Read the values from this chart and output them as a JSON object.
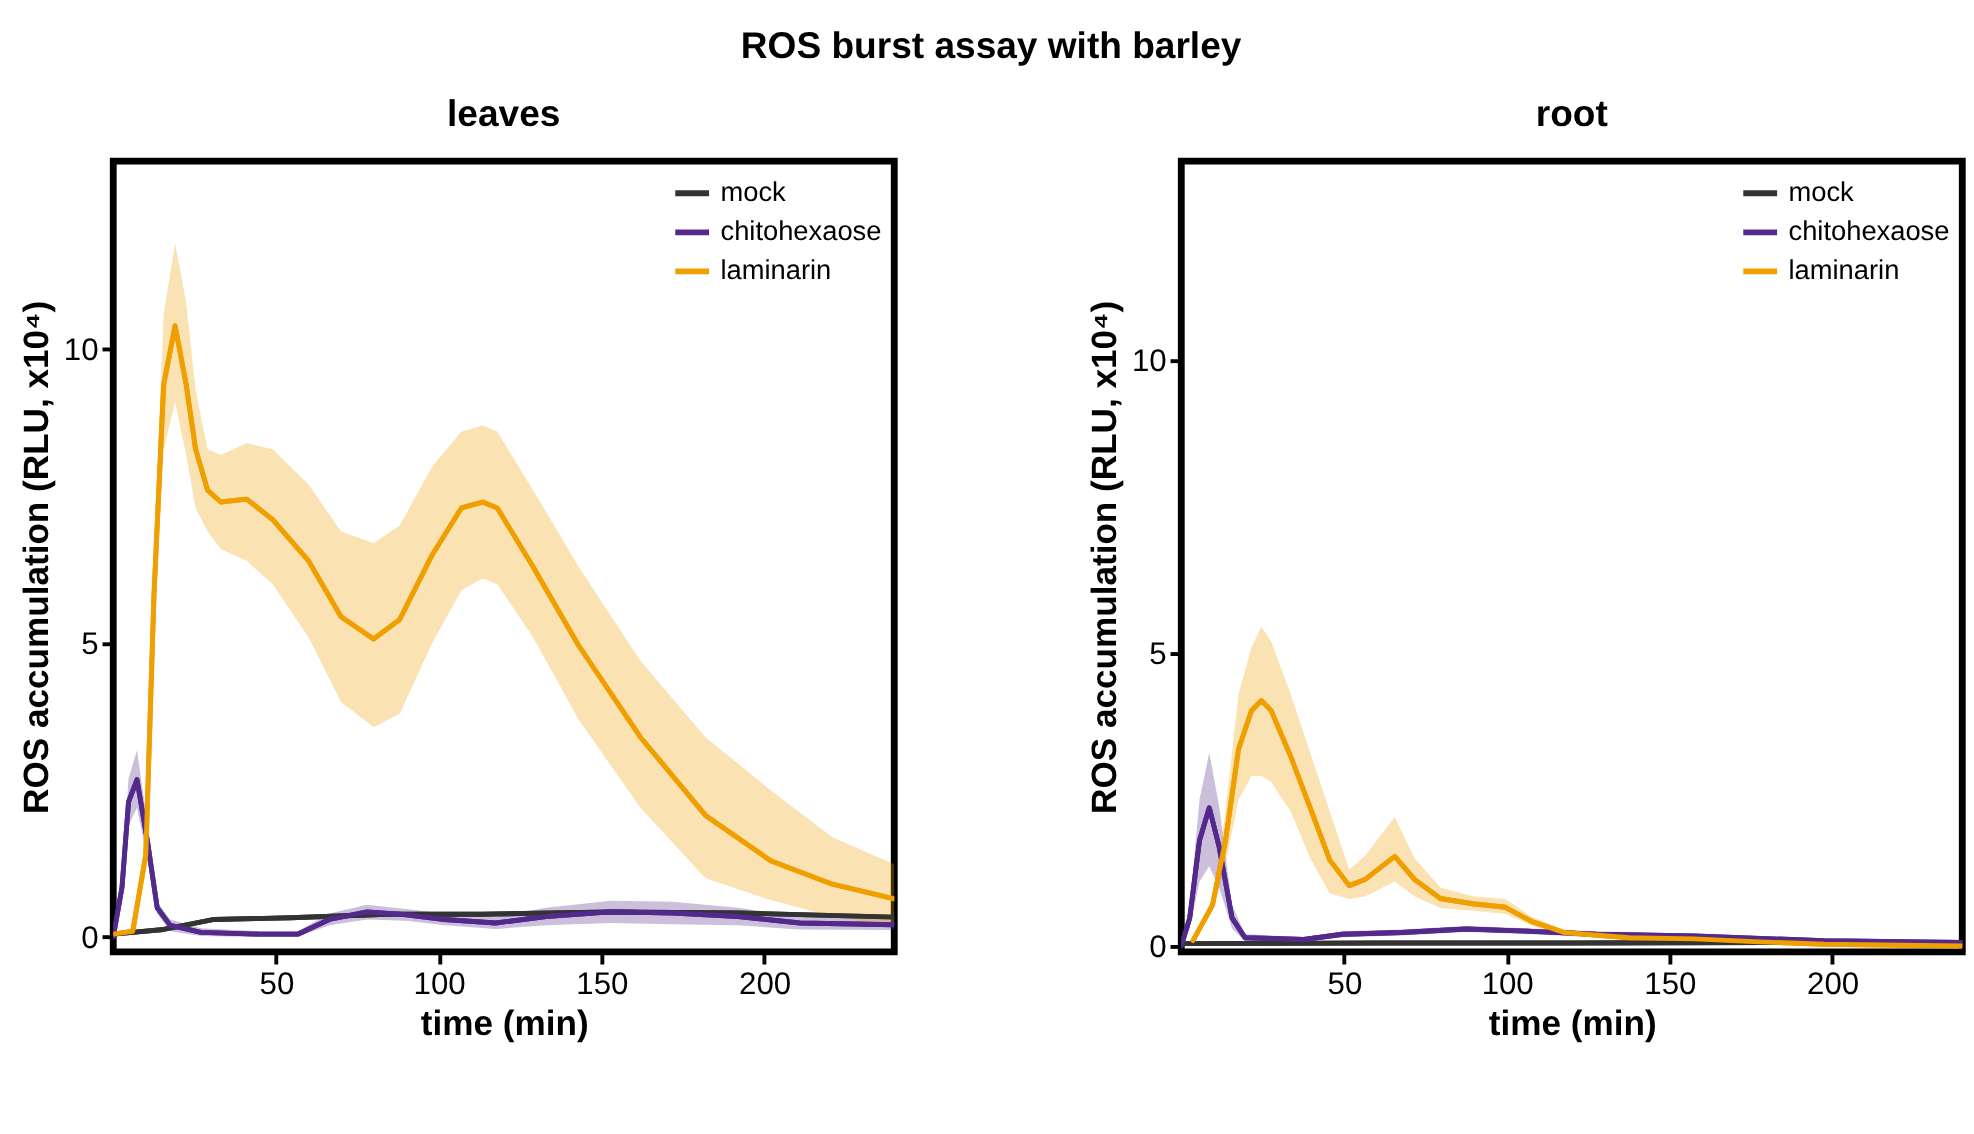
{
  "chart_data": [
    {
      "type": "line",
      "title": "ROS burst assay with barley",
      "subtitle": "leaves",
      "xlabel": "time (min)",
      "ylabel": "ROS accumulation (RLU, x10⁴)",
      "xlim": [
        0,
        240
      ],
      "ylim": [
        -0.25,
        13.2
      ],
      "xticks": [
        50,
        100,
        150,
        200
      ],
      "yticks": [
        0,
        5,
        10
      ],
      "grid": false,
      "legend": "top right",
      "line_style": "solid",
      "series": [
        {
          "name": "mock",
          "color": "#333333",
          "x": [
            0,
            15.5,
            31,
            54.7,
            84,
            113.5,
            153,
            192,
            240
          ],
          "values": [
            0.05,
            0.13,
            0.3,
            0.33,
            0.39,
            0.39,
            0.43,
            0.41,
            0.34
          ]
        },
        {
          "name": "chitohexaose",
          "color": "#532a8c",
          "x": [
            0,
            2.7,
            4.7,
            7.3,
            10.6,
            13.5,
            17.5,
            27,
            45,
            56.7,
            66.4,
            78,
            90,
            101.8,
            117.5,
            133,
            153,
            172,
            192,
            211,
            240
          ],
          "values": [
            0,
            0.85,
            2.3,
            2.68,
            1.6,
            0.5,
            0.2,
            0.08,
            0.05,
            0.05,
            0.3,
            0.43,
            0.38,
            0.3,
            0.24,
            0.35,
            0.43,
            0.41,
            0.35,
            0.24,
            0.21
          ],
          "upper": [
            0,
            1.0,
            2.7,
            3.18,
            1.9,
            0.6,
            0.3,
            0.15,
            0.1,
            0.1,
            0.4,
            0.55,
            0.48,
            0.4,
            0.34,
            0.5,
            0.62,
            0.6,
            0.5,
            0.35,
            0.3
          ],
          "lower": [
            0,
            0.7,
            1.9,
            2.2,
            1.3,
            0.4,
            0.1,
            0.02,
            0.0,
            0.0,
            0.2,
            0.3,
            0.28,
            0.2,
            0.14,
            0.2,
            0.24,
            0.22,
            0.2,
            0.13,
            0.12
          ]
        },
        {
          "name": "laminarin",
          "color": "#ef9f00",
          "x": [
            0,
            6,
            10,
            12.5,
            15.5,
            19,
            22.4,
            25.3,
            29,
            33,
            41,
            49,
            60,
            70,
            80,
            88,
            98,
            107,
            113.5,
            118,
            129,
            143,
            162,
            182,
            202,
            221,
            240
          ],
          "values": [
            0.05,
            0.1,
            1.4,
            5.8,
            9.4,
            10.4,
            9.4,
            8.3,
            7.6,
            7.4,
            7.45,
            7.1,
            6.4,
            5.45,
            5.07,
            5.4,
            6.5,
            7.3,
            7.4,
            7.3,
            6.3,
            4.96,
            3.4,
            2.07,
            1.3,
            0.9,
            0.65
          ],
          "upper": [
            0.05,
            0.15,
            1.6,
            6.6,
            10.6,
            11.8,
            10.8,
            9.3,
            8.3,
            8.2,
            8.4,
            8.3,
            7.7,
            6.9,
            6.7,
            7.0,
            8.0,
            8.6,
            8.7,
            8.6,
            7.6,
            6.3,
            4.7,
            3.4,
            2.5,
            1.7,
            1.24
          ],
          "lower": [
            0.05,
            0.05,
            1.2,
            5.0,
            8.3,
            9.1,
            8.2,
            7.3,
            6.9,
            6.6,
            6.4,
            6.0,
            5.1,
            4.0,
            3.57,
            3.8,
            5.0,
            5.9,
            6.1,
            6.0,
            5.1,
            3.7,
            2.2,
            1.0,
            0.63,
            0.35,
            0.19
          ]
        }
      ]
    },
    {
      "type": "line",
      "subtitle": "root",
      "xlabel": "time (min)",
      "ylabel": "ROS accumulation (RLU, x10⁴)",
      "xlim": [
        0,
        240
      ],
      "ylim": [
        -0.1,
        13.4
      ],
      "xticks": [
        50,
        100,
        150,
        200
      ],
      "yticks": [
        0,
        5,
        10
      ],
      "grid": false,
      "legend": "top right",
      "line_style": "solid",
      "series": [
        {
          "name": "mock",
          "color": "#333333",
          "x": [
            0,
            60,
            120,
            180,
            240
          ],
          "values": [
            0.04,
            0.05,
            0.05,
            0.06,
            0.06
          ]
        },
        {
          "name": "chitohexaose",
          "color": "#532a8c",
          "x": [
            0,
            2.6,
            5.6,
            8.6,
            11.6,
            15.6,
            19.6,
            37.6,
            49.6,
            67.6,
            87.6,
            107.6,
            127.6,
            157.6,
            197.6,
            240
          ],
          "values": [
            0,
            0.48,
            1.8,
            2.36,
            1.7,
            0.48,
            0.14,
            0.11,
            0.2,
            0.23,
            0.29,
            0.25,
            0.2,
            0.17,
            0.09,
            0.06
          ],
          "upper": [
            0,
            0.7,
            2.5,
            3.3,
            2.4,
            0.7,
            0.2,
            0.15,
            0.25,
            0.28,
            0.34,
            0.3,
            0.25,
            0.2,
            0.12,
            0.08
          ],
          "lower": [
            0,
            0.3,
            1.1,
            1.36,
            1.0,
            0.3,
            0.08,
            0.07,
            0.15,
            0.18,
            0.24,
            0.2,
            0.15,
            0.14,
            0.06,
            0.04
          ]
        },
        {
          "name": "laminarin",
          "color": "#ef9f00",
          "x": [
            3.6,
            9.6,
            13.6,
            17.6,
            21.6,
            24.6,
            27.6,
            33.6,
            39.6,
            45.6,
            51.6,
            56.6,
            65.6,
            71.6,
            79.6,
            89.6,
            99.6,
            107.6,
            117.6,
            137.6,
            157.6,
            177.6,
            197.6,
            240
          ],
          "values": [
            0.09,
            0.7,
            1.8,
            3.36,
            4.02,
            4.19,
            4.02,
            3.24,
            2.36,
            1.47,
            1.03,
            1.14,
            1.53,
            1.14,
            0.81,
            0.72,
            0.66,
            0.42,
            0.23,
            0.14,
            0.12,
            0.07,
            0.03,
            0.0
          ],
          "upper": [
            0.09,
            0.8,
            2.3,
            4.3,
            5.1,
            5.45,
            5.2,
            4.3,
            3.3,
            2.3,
            1.3,
            1.55,
            2.2,
            1.5,
            1.0,
            0.85,
            0.8,
            0.5,
            0.28,
            0.16,
            0.14,
            0.09,
            0.05,
            0.02
          ],
          "lower": [
            0.09,
            0.6,
            1.4,
            2.5,
            2.9,
            2.9,
            2.8,
            2.3,
            1.5,
            0.9,
            0.8,
            0.85,
            1.1,
            0.85,
            0.65,
            0.6,
            0.55,
            0.35,
            0.18,
            0.12,
            0.1,
            0.05,
            0.01,
            -0.02
          ]
        }
      ]
    }
  ]
}
